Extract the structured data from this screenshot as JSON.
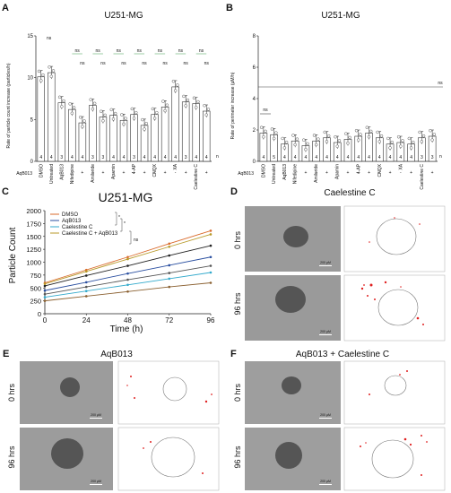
{
  "panels": {
    "A": {
      "letter": "A",
      "title": "U251-MG",
      "ylabel": "Rate of particle count increase (particles/h)",
      "treatment_row_label": "AqB013",
      "sig_above_untreated": "ns",
      "n_label": "n"
    },
    "B": {
      "letter": "B",
      "title": "U251-MG",
      "ylabel": "Rate of perimeter increase (µM/h)",
      "treatment_row_label": "AqB013",
      "sig_overall": "ns",
      "sig_dmso_untreated": "ns",
      "n_label": "n"
    },
    "C": {
      "letter": "C",
      "title": "U251-MG",
      "xlabel": "Time (h)",
      "ylabel": "Particle Count",
      "legend": [
        "DMSO",
        "AqB013",
        "Caelestine C",
        "Caelestine C + AqB013"
      ],
      "sig_pair_1": "*",
      "sig_pair_2": "*",
      "sig_last": "ns"
    },
    "D": {
      "letter": "D",
      "title": "Caelestine C",
      "rows": [
        "0 hrs",
        "96 hrs"
      ],
      "scale_bar": "200 µM"
    },
    "E": {
      "letter": "E",
      "title": "AqB013",
      "rows": [
        "0 hrs",
        "96 hrs"
      ],
      "scale_bar": "200 µM"
    },
    "F": {
      "letter": "F",
      "title": "AqB013 + Caelestine C",
      "rows": [
        "0 hrs",
        "96 hrs"
      ],
      "scale_bar": "200 µM"
    }
  },
  "chart_data": [
    {
      "type": "bar",
      "panel": "A",
      "title": "U251-MG",
      "ylabel": "Rate of particle count increase (particles/h)",
      "ylim": [
        0,
        15
      ],
      "yticks": [
        0,
        5,
        10,
        15
      ],
      "categories": [
        "DMSO",
        "Untreated",
        "AqB013",
        "Nifedipine",
        "",
        "Amiloride",
        "",
        "Apamin",
        "",
        "4-AP",
        "",
        "CNQX",
        "",
        "XA",
        "",
        "Caelestine C",
        ""
      ],
      "aqb013": [
        "",
        "",
        "",
        "-",
        "+",
        "-",
        "+",
        "-",
        "+",
        "-",
        "+",
        "-",
        "+",
        "-",
        "+",
        "-",
        "+"
      ],
      "values": [
        10.1,
        10.6,
        7.0,
        6.2,
        4.6,
        6.7,
        5.3,
        5.5,
        4.9,
        5.6,
        4.3,
        5.6,
        6.5,
        8.9,
        7.1,
        6.9,
        6.0
      ],
      "n": [
        4,
        4,
        3,
        4,
        4,
        3,
        3,
        4,
        4,
        3,
        4,
        4,
        4,
        4,
        3,
        4,
        4
      ],
      "colors": {
        "bar": "#ffffff",
        "edge": "#333333",
        "point": "#555555",
        "sig_green": "#3a9a4a",
        "sig_red": "#cc2222"
      }
    },
    {
      "type": "bar",
      "panel": "B",
      "title": "U251-MG",
      "ylabel": "Rate of perimeter increase (µM/h)",
      "ylim": [
        0,
        8
      ],
      "yticks": [
        0,
        2,
        4,
        6,
        8
      ],
      "categories": [
        "DMSO",
        "Untreated",
        "AqB013",
        "Nifedipine",
        "",
        "Amiloride",
        "",
        "Apamin",
        "",
        "4-AP",
        "",
        "CNQX",
        "",
        "XA",
        "",
        "Caelestine C",
        ""
      ],
      "aqb013": [
        "",
        "",
        "",
        "-",
        "+",
        "-",
        "+",
        "-",
        "+",
        "-",
        "+",
        "-",
        "+",
        "-",
        "+",
        "-",
        "+"
      ],
      "values": [
        1.8,
        1.7,
        1.1,
        1.3,
        1.0,
        1.3,
        1.5,
        1.2,
        1.4,
        1.6,
        1.8,
        1.5,
        1.1,
        1.2,
        1.1,
        1.5,
        1.6
      ],
      "n": [
        4,
        5,
        4,
        4,
        4,
        4,
        4,
        4,
        4,
        4,
        4,
        4,
        4,
        4,
        4,
        3,
        3
      ],
      "colors": {
        "bar": "#ffffff",
        "edge": "#333333",
        "point": "#555555"
      }
    },
    {
      "type": "line",
      "panel": "C",
      "title": "U251-MG",
      "xlabel": "Time (h)",
      "ylabel": "Particle Count",
      "x": [
        0,
        24,
        48,
        72,
        96
      ],
      "xlim": [
        0,
        96
      ],
      "ylim": [
        0,
        2000
      ],
      "xticks": [
        0,
        24,
        48,
        72,
        96
      ],
      "yticks": [
        0,
        250,
        500,
        750,
        1000,
        1250,
        1500,
        1750,
        2000
      ],
      "series": [
        {
          "name": "DMSO",
          "color": "#d96a2b",
          "values": [
            600,
            850,
            1100,
            1360,
            1610
          ]
        },
        {
          "name": "",
          "color": "#222222",
          "values": [
            540,
            740,
            930,
            1130,
            1320
          ]
        },
        {
          "name": "AqB013",
          "color": "#2a4fa0",
          "values": [
            450,
            610,
            780,
            940,
            1100
          ]
        },
        {
          "name": "",
          "color": "#555555",
          "values": [
            380,
            520,
            660,
            790,
            930
          ]
        },
        {
          "name": "Caelestine C",
          "color": "#33aacc",
          "values": [
            320,
            440,
            560,
            680,
            800
          ]
        },
        {
          "name": "",
          "color": "#8a6030",
          "values": [
            250,
            340,
            430,
            520,
            600
          ]
        },
        {
          "name": "Caelestine C + AqB013",
          "color": "#b89a2a",
          "values": [
            580,
            820,
            1060,
            1300,
            1540
          ]
        }
      ]
    }
  ]
}
